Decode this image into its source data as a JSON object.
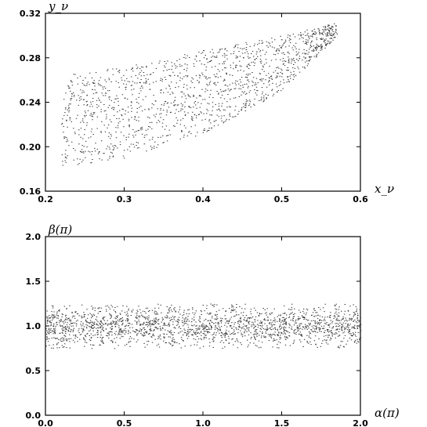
{
  "chart_data": [
    {
      "type": "scatter",
      "id": "top",
      "xlabel": "x_ν",
      "ylabel": "y_ν",
      "xlim": [
        0.2,
        0.6
      ],
      "ylim": [
        0.16,
        0.32
      ],
      "xticks": [
        0.2,
        0.3,
        0.4,
        0.5,
        0.6
      ],
      "yticks": [
        0.16,
        0.2,
        0.24,
        0.28,
        0.32
      ],
      "xtick_labels": [
        "0.2",
        "0.3",
        "0.4",
        "0.5",
        "0.6"
      ],
      "ytick_labels": [
        "0.16",
        "0.20",
        "0.24",
        "0.28",
        "0.32"
      ],
      "grid": false,
      "legend": "none",
      "region": {
        "description": "dense cloud of points in a wedge that narrows toward the upper right",
        "x_range": [
          0.22,
          0.57
        ],
        "lower_edge": [
          [
            0.22,
            0.182
          ],
          [
            0.3,
            0.19
          ],
          [
            0.4,
            0.212
          ],
          [
            0.5,
            0.25
          ],
          [
            0.57,
            0.3
          ]
        ],
        "upper_edge": [
          [
            0.22,
            0.265
          ],
          [
            0.3,
            0.272
          ],
          [
            0.4,
            0.287
          ],
          [
            0.5,
            0.3
          ],
          [
            0.57,
            0.312
          ]
        ],
        "approx_point_count": 1500
      }
    },
    {
      "type": "scatter",
      "id": "bottom",
      "xlabel": "α(π)",
      "ylabel": "β(π)",
      "xlim": [
        0.0,
        2.0
      ],
      "ylim": [
        0.0,
        2.0
      ],
      "xticks": [
        0.0,
        0.5,
        1.0,
        1.5,
        2.0
      ],
      "yticks": [
        0.0,
        0.5,
        1.0,
        1.5,
        2.0
      ],
      "xtick_labels": [
        "0.0",
        "0.5",
        "1.0",
        "1.5",
        "2.0"
      ],
      "ytick_labels": [
        "0.0",
        "0.5",
        "1.0",
        "1.5",
        "2.0"
      ],
      "grid": false,
      "legend": "none",
      "region": {
        "description": "horizontal band of points centered near beta = 1",
        "x_range": [
          0.0,
          2.0
        ],
        "center_y": 1.0,
        "y_range": [
          0.75,
          1.25
        ],
        "approx_point_count": 2000
      }
    }
  ]
}
